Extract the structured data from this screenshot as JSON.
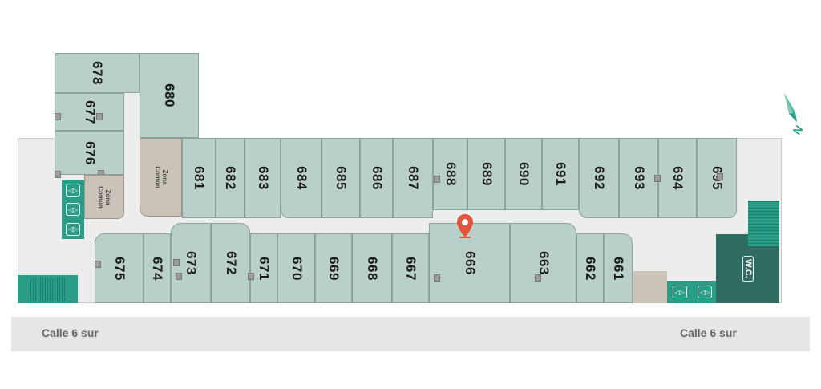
{
  "colors": {
    "unit": "#b9cfc9",
    "corridor": "#ededed",
    "common_area": "#cbc3b8",
    "service": "#2a9d87",
    "wc_block": "#2f6b60",
    "pin": "#e4553b"
  },
  "common_area_label": "Zona Común",
  "units_top": [
    "681",
    "682",
    "683",
    "684",
    "685",
    "686",
    "687",
    "688",
    "689",
    "690",
    "691",
    "692",
    "693",
    "694",
    "695"
  ],
  "units_left": [
    "678",
    "677",
    "676",
    "680"
  ],
  "units_bottom": [
    "675",
    "674",
    "673",
    "672",
    "671",
    "670",
    "669",
    "668",
    "667",
    "666",
    "663",
    "662",
    "661"
  ],
  "wc_label": "W.C.",
  "compass": {
    "label": "N",
    "icon": "north-arrow-icon"
  },
  "pin": {
    "icon": "location-pin-icon"
  },
  "street": {
    "left_label": "Calle 6 sur",
    "right_label": "Calle 6 sur"
  }
}
